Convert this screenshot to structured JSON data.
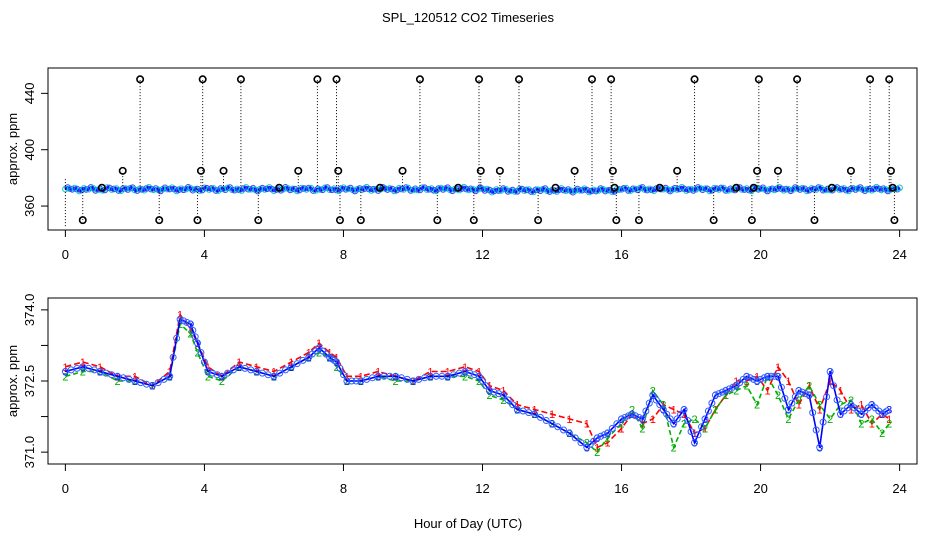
{
  "chart_data": [
    {
      "type": "scatter",
      "title": "SPL_120512  CO2 Timeseries",
      "ylabel": "approx. ppm",
      "xlabel": "",
      "xlim": [
        -0.5,
        24.5
      ],
      "ylim": [
        343,
        458
      ],
      "xticks": [
        0,
        4,
        8,
        12,
        16,
        20,
        24
      ],
      "yticks": [
        360,
        400,
        440
      ],
      "baseline_ppm": 372,
      "marker_labels": {
        "circle": "o"
      },
      "colors": {
        "line": "#0000ff",
        "marker_a": "#00cccc",
        "marker_b": "#4040ff",
        "outlier": "#000000",
        "axes": "#000000"
      },
      "outliers": [
        {
          "x": 0.5,
          "y": 350
        },
        {
          "x": 1.05,
          "y": 373
        },
        {
          "x": 1.65,
          "y": 385
        },
        {
          "x": 2.15,
          "y": 450
        },
        {
          "x": 2.7,
          "y": 350
        },
        {
          "x": 3.8,
          "y": 350
        },
        {
          "x": 3.9,
          "y": 385
        },
        {
          "x": 3.95,
          "y": 450
        },
        {
          "x": 4.55,
          "y": 385
        },
        {
          "x": 5.05,
          "y": 450
        },
        {
          "x": 5.55,
          "y": 350
        },
        {
          "x": 6.15,
          "y": 373
        },
        {
          "x": 6.7,
          "y": 385
        },
        {
          "x": 7.25,
          "y": 450
        },
        {
          "x": 7.8,
          "y": 450
        },
        {
          "x": 7.85,
          "y": 385
        },
        {
          "x": 7.9,
          "y": 350
        },
        {
          "x": 8.5,
          "y": 350
        },
        {
          "x": 9.05,
          "y": 373
        },
        {
          "x": 9.7,
          "y": 385
        },
        {
          "x": 10.2,
          "y": 450
        },
        {
          "x": 10.7,
          "y": 350
        },
        {
          "x": 11.3,
          "y": 373
        },
        {
          "x": 11.75,
          "y": 350
        },
        {
          "x": 11.9,
          "y": 450
        },
        {
          "x": 11.95,
          "y": 385
        },
        {
          "x": 12.5,
          "y": 385
        },
        {
          "x": 13.05,
          "y": 450
        },
        {
          "x": 13.6,
          "y": 350
        },
        {
          "x": 14.1,
          "y": 373
        },
        {
          "x": 14.65,
          "y": 385
        },
        {
          "x": 15.15,
          "y": 450
        },
        {
          "x": 15.7,
          "y": 450
        },
        {
          "x": 15.75,
          "y": 385
        },
        {
          "x": 15.8,
          "y": 373
        },
        {
          "x": 15.85,
          "y": 350
        },
        {
          "x": 16.5,
          "y": 350
        },
        {
          "x": 17.1,
          "y": 373
        },
        {
          "x": 17.6,
          "y": 385
        },
        {
          "x": 18.1,
          "y": 450
        },
        {
          "x": 18.65,
          "y": 350
        },
        {
          "x": 19.3,
          "y": 373
        },
        {
          "x": 19.75,
          "y": 350
        },
        {
          "x": 19.8,
          "y": 373
        },
        {
          "x": 19.9,
          "y": 385
        },
        {
          "x": 19.95,
          "y": 450
        },
        {
          "x": 20.5,
          "y": 385
        },
        {
          "x": 21.05,
          "y": 450
        },
        {
          "x": 21.55,
          "y": 350
        },
        {
          "x": 22.05,
          "y": 373
        },
        {
          "x": 22.6,
          "y": 385
        },
        {
          "x": 23.15,
          "y": 450
        },
        {
          "x": 23.7,
          "y": 450
        },
        {
          "x": 23.75,
          "y": 385
        },
        {
          "x": 23.8,
          "y": 373
        },
        {
          "x": 23.85,
          "y": 350
        }
      ]
    },
    {
      "type": "line",
      "xlabel": "Hour of Day (UTC)",
      "ylabel": "approx. ppm",
      "xlim": [
        -0.5,
        24.5
      ],
      "ylim": [
        370.75,
        374.25
      ],
      "xticks": [
        0,
        4,
        8,
        12,
        16,
        20,
        24
      ],
      "yticks": [
        "371.0",
        "372.5",
        "374.0"
      ],
      "ytick_values": [
        371.0,
        372.5,
        374.0
      ],
      "x": [
        0,
        0.5,
        1,
        1.5,
        2,
        2.5,
        3,
        3.3,
        3.6,
        3.8,
        4.1,
        4.5,
        5,
        5.5,
        6,
        6.5,
        7,
        7.3,
        7.6,
        7.8,
        8.1,
        8.5,
        9,
        9.5,
        10,
        10.5,
        11,
        11.5,
        11.9,
        12.2,
        12.6,
        13,
        13.5,
        14,
        14.5,
        15,
        15.3,
        15.6,
        16,
        16.3,
        16.6,
        16.9,
        17.2,
        17.5,
        17.8,
        18.1,
        18.4,
        18.7,
        19,
        19.3,
        19.6,
        19.9,
        20.2,
        20.5,
        20.8,
        21.1,
        21.4,
        21.7,
        22.0,
        22.3,
        22.6,
        22.9,
        23.2,
        23.5,
        23.7
      ],
      "series": [
        {
          "name": "1",
          "color": "#ff0000",
          "values": [
            372.8,
            372.9,
            372.8,
            372.6,
            372.6,
            372.4,
            372.7,
            373.9,
            373.6,
            373.3,
            372.8,
            372.6,
            372.9,
            372.8,
            372.7,
            372.9,
            373.1,
            373.3,
            373.1,
            373.0,
            372.6,
            372.6,
            372.7,
            372.6,
            372.5,
            372.7,
            372.7,
            372.8,
            372.7,
            372.4,
            372.3,
            372.0,
            371.9,
            371.8,
            371.7,
            371.6,
            371.1,
            371.2,
            371.5,
            371.8,
            371.6,
            371.7,
            372.0,
            371.9,
            371.8,
            371.4,
            371.5,
            371.9,
            372.2,
            372.5,
            372.5,
            372.6,
            372.3,
            372.8,
            372.5,
            372.0,
            372.4,
            371.9,
            372.5,
            372.3,
            371.9,
            372.0,
            371.6,
            371.8,
            371.7
          ]
        },
        {
          "name": "2",
          "color": "#00b000",
          "values": [
            372.6,
            372.7,
            372.7,
            372.5,
            372.5,
            372.4,
            372.6,
            373.7,
            373.5,
            373.1,
            372.6,
            372.5,
            372.8,
            372.7,
            372.6,
            372.8,
            373.0,
            373.1,
            373.0,
            372.8,
            372.5,
            372.5,
            372.6,
            372.5,
            372.5,
            372.6,
            372.6,
            372.6,
            372.5,
            372.2,
            372.1,
            371.9,
            371.8,
            371.6,
            371.4,
            371.2,
            371.0,
            371.3,
            371.6,
            371.9,
            371.5,
            372.3,
            372.0,
            371.1,
            371.6,
            371.7,
            371.5,
            371.9,
            372.2,
            372.3,
            372.4,
            372.0,
            372.6,
            372.2,
            371.7,
            372.1,
            372.4,
            372.0,
            371.7,
            372.0,
            372.1,
            371.6,
            371.7,
            371.4,
            371.6
          ]
        },
        {
          "name": "3",
          "color": "#0000ff",
          "values": [
            372.7,
            372.8,
            372.7,
            372.6,
            372.5,
            372.4,
            372.6,
            373.8,
            373.7,
            373.3,
            372.7,
            372.6,
            372.8,
            372.7,
            372.6,
            372.8,
            373.0,
            373.2,
            373.0,
            372.9,
            372.5,
            372.5,
            372.6,
            372.6,
            372.5,
            372.6,
            372.6,
            372.7,
            372.6,
            372.3,
            372.2,
            371.9,
            371.8,
            371.6,
            371.4,
            371.1,
            371.3,
            371.4,
            371.7,
            371.8,
            371.7,
            372.2,
            371.9,
            371.6,
            371.9,
            371.2,
            371.7,
            372.2,
            372.3,
            372.4,
            372.6,
            372.5,
            372.6,
            372.6,
            371.9,
            372.3,
            372.2,
            371.1,
            372.7,
            371.8,
            372.0,
            371.8,
            372.0,
            371.8,
            371.9
          ]
        }
      ]
    }
  ]
}
